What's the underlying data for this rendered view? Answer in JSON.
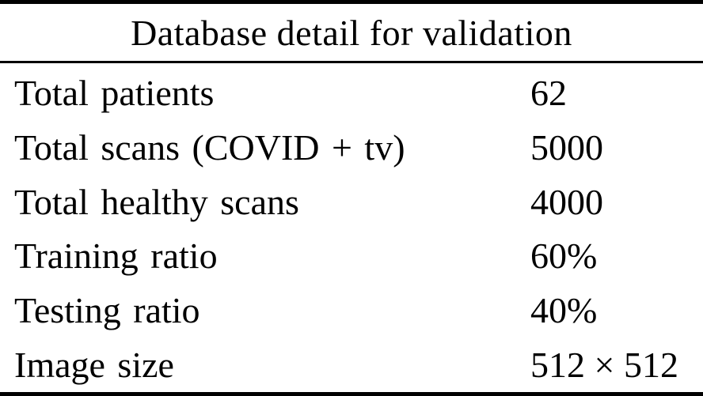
{
  "page": {
    "background_color": "#ffffff",
    "text_color": "#000000",
    "rule_color": "#000000"
  },
  "table": {
    "title": "Database detail for validation",
    "rows": [
      {
        "label": "Total patients",
        "value": "62"
      },
      {
        "label": "Total scans (COVID + tv)",
        "value": "5000"
      },
      {
        "label": "Total healthy scans",
        "value": "4000"
      },
      {
        "label": "Training ratio",
        "value": "60%"
      },
      {
        "label": "Testing ratio",
        "value": "40%"
      },
      {
        "label": "Image size",
        "value": "512 × 512"
      }
    ]
  }
}
